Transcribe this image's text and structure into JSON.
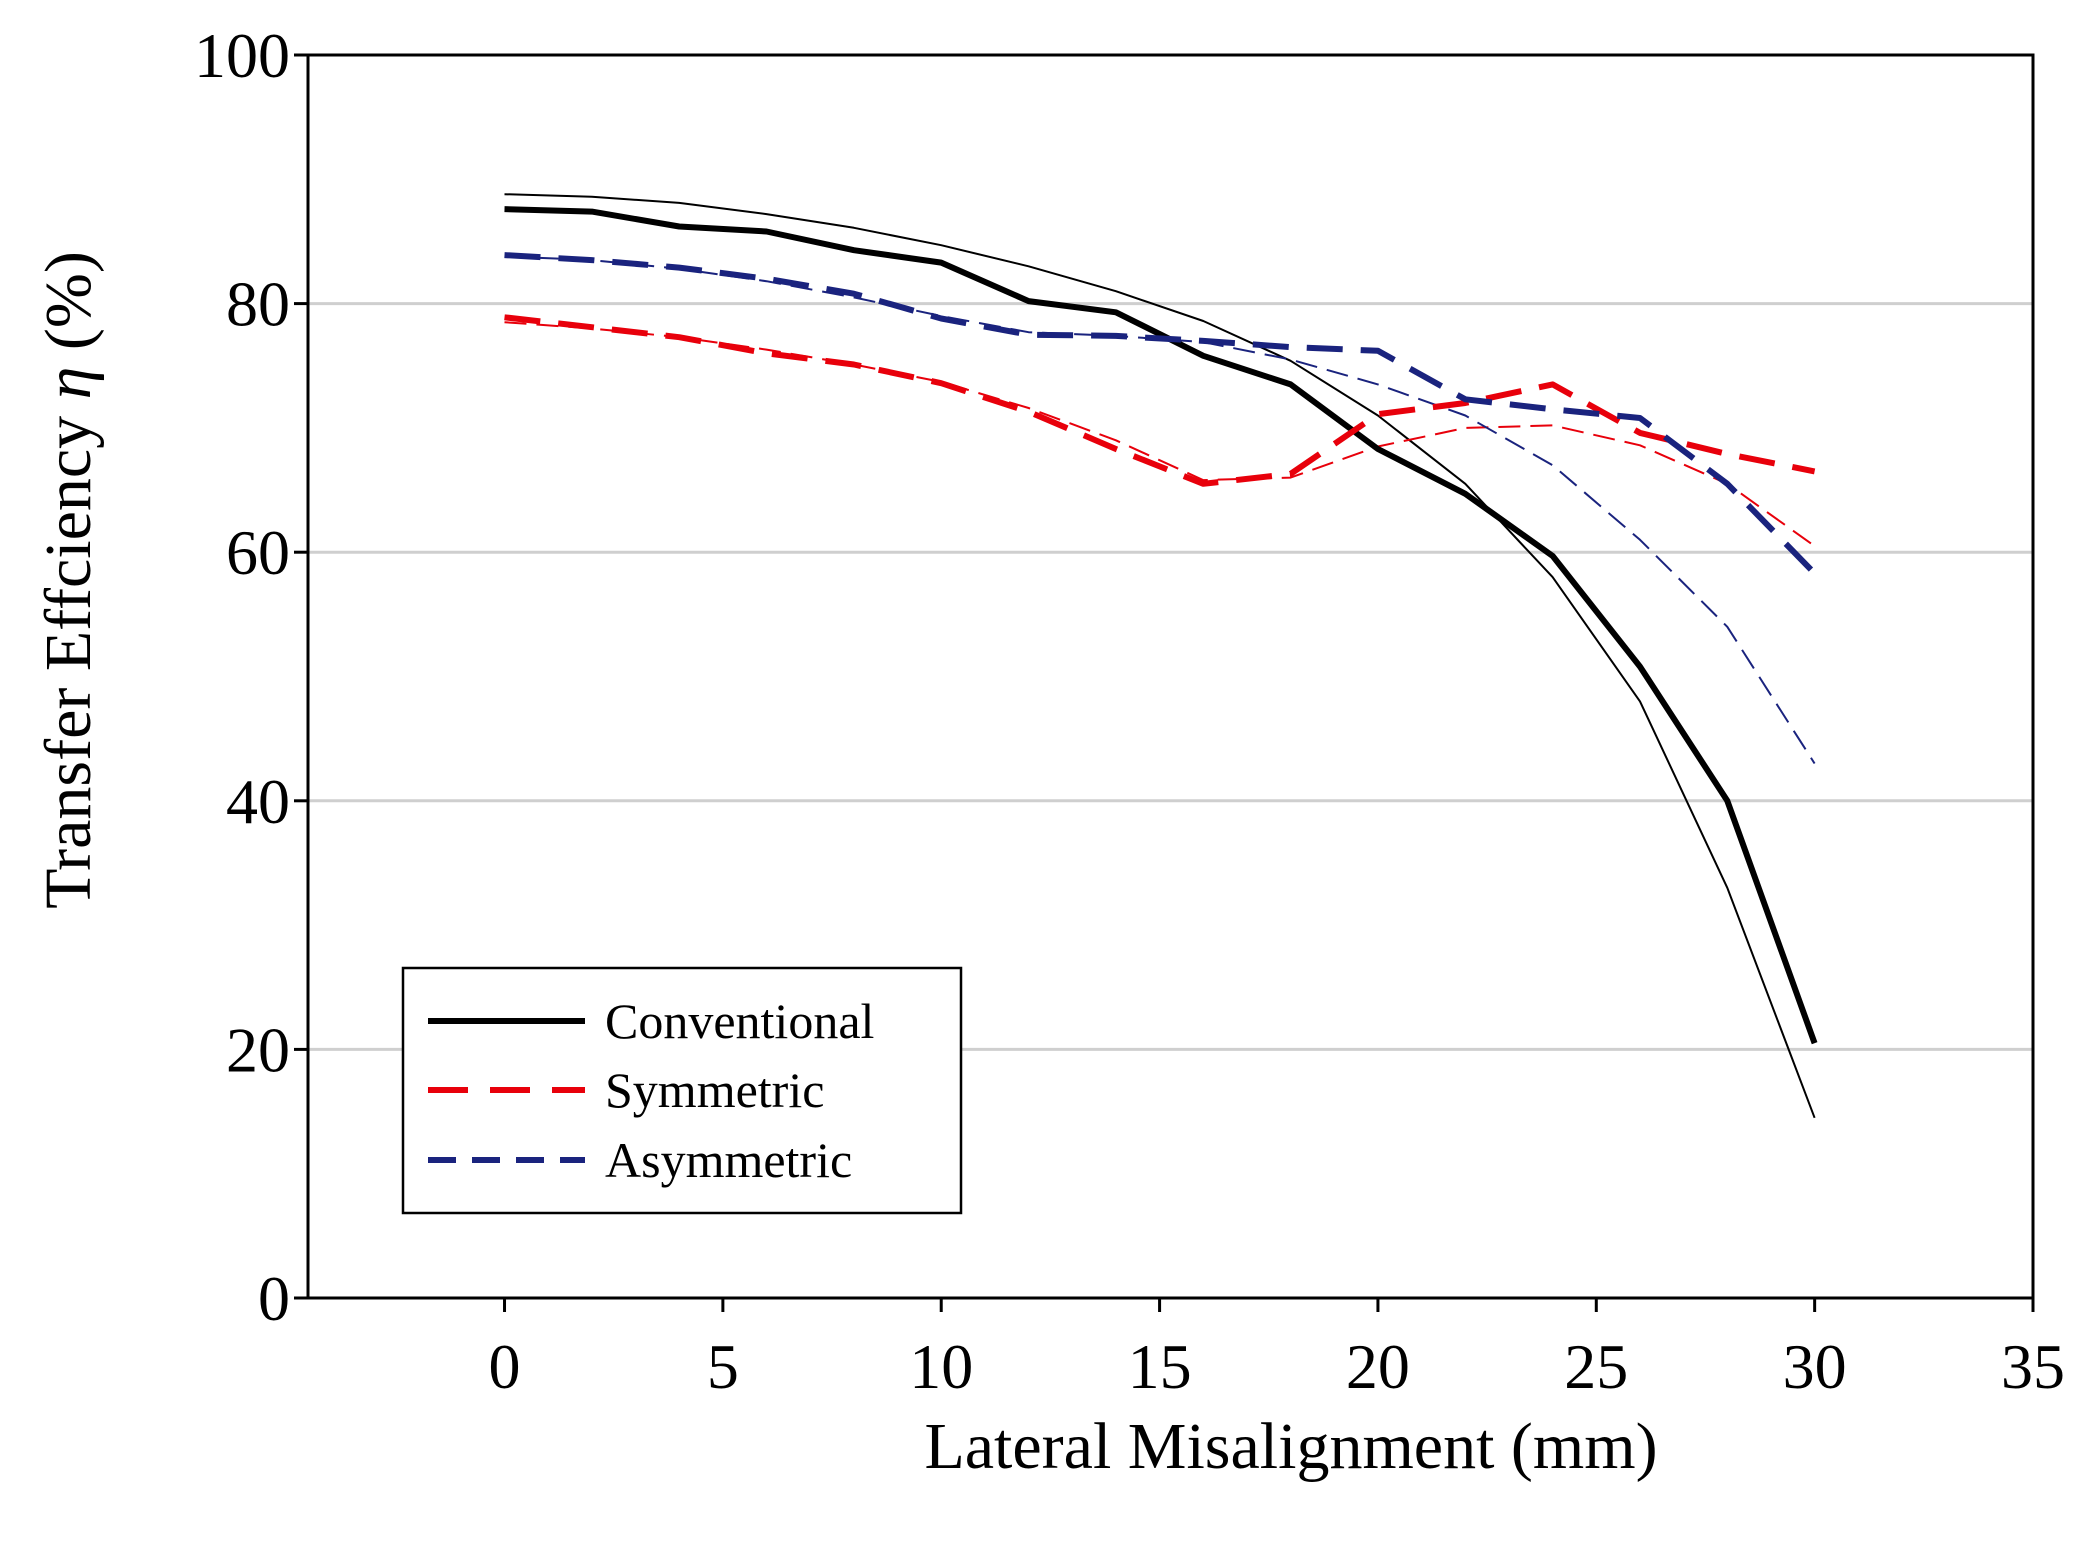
{
  "chart_data": {
    "type": "line",
    "title": "",
    "xlabel": "Lateral Misalignment (mm)",
    "ylabel": "Transfer Effciency",
    "ylabel_symbol": "η",
    "ylabel_unit": "(%)",
    "xlim": [
      -4.5,
      35
    ],
    "ylim": [
      0,
      100
    ],
    "x_ticks": [
      0,
      5,
      10,
      15,
      20,
      25,
      30,
      35
    ],
    "y_ticks": [
      0,
      20,
      40,
      60,
      80,
      100
    ],
    "grid": "horizontal",
    "legend_position": "bottom-left",
    "legend": [
      "Conventional",
      "Symmetric",
      "Asymmetric"
    ],
    "x": [
      0,
      2,
      4,
      6,
      8,
      10,
      12,
      14,
      16,
      18,
      20,
      22,
      24,
      26,
      28,
      30
    ],
    "series": [
      {
        "name": "Conventional",
        "color": "#000000",
        "style": "solid",
        "in_legend": true,
        "values": [
          87.6,
          87.4,
          86.2,
          85.8,
          84.3,
          83.3,
          80.2,
          79.3,
          75.8,
          73.5,
          68.3,
          64.7,
          59.7,
          50.8,
          40.0,
          20.5
        ]
      },
      {
        "name": "Symmetric",
        "color": "#e8000b",
        "style": "dashed",
        "in_legend": true,
        "values": [
          78.9,
          78.1,
          77.3,
          76.0,
          75.1,
          73.6,
          71.3,
          68.3,
          65.5,
          66.3,
          71.1,
          72.0,
          73.5,
          69.6,
          67.9,
          66.5
        ]
      },
      {
        "name": "Asymmetric",
        "color": "#1a237e",
        "style": "dashed",
        "in_legend": true,
        "values": [
          83.9,
          83.5,
          82.9,
          82.0,
          80.8,
          78.8,
          77.5,
          77.4,
          77.0,
          76.5,
          76.2,
          72.3,
          71.5,
          70.8,
          65.5,
          58.3
        ]
      },
      {
        "name": "Conventional (thin)",
        "color": "#000000",
        "style": "thin-solid",
        "in_legend": false,
        "values": [
          88.8,
          88.6,
          88.1,
          87.2,
          86.1,
          84.7,
          83.0,
          81.0,
          78.6,
          75.4,
          71.0,
          65.5,
          58.0,
          48.0,
          33.0,
          14.5
        ]
      },
      {
        "name": "Symmetric (thin)",
        "color": "#e8000b",
        "style": "thin-dashed",
        "in_legend": false,
        "values": [
          78.5,
          78.0,
          77.3,
          76.3,
          75.1,
          73.7,
          71.6,
          69.0,
          65.8,
          66.0,
          68.5,
          70.0,
          70.2,
          68.6,
          65.5,
          60.5
        ]
      },
      {
        "name": "Asymmetric (thin)",
        "color": "#1a237e",
        "style": "thin-dashed",
        "in_legend": false,
        "values": [
          83.8,
          83.5,
          82.8,
          81.8,
          80.5,
          79.0,
          77.7,
          77.4,
          76.9,
          75.5,
          73.5,
          71.0,
          67.0,
          61.0,
          54.0,
          43.0
        ]
      }
    ]
  }
}
